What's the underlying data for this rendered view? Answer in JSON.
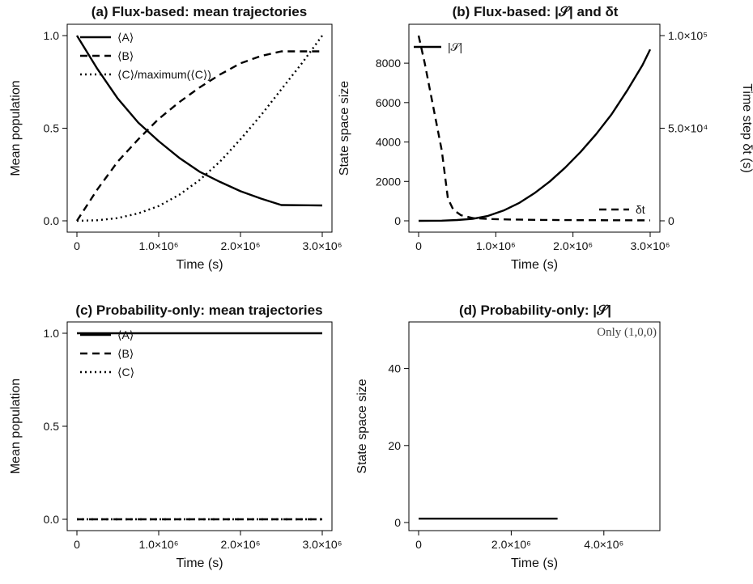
{
  "chart_data": [
    {
      "id": "a",
      "type": "line",
      "title": "(a) Flux-based: mean trajectories",
      "xlabel": "Time (s)",
      "ylabel": "Mean population",
      "xlim": [
        0,
        3000000
      ],
      "ylim": [
        0,
        1
      ],
      "xticks": [
        0,
        1000000,
        2000000,
        3000000
      ],
      "xtick_labels": [
        "0",
        "1.0×10⁶",
        "2.0×10⁶",
        "3.0×10⁶"
      ],
      "yticks": [
        0,
        0.5,
        1
      ],
      "ytick_labels": [
        "0.0",
        "0.5",
        "1.0"
      ],
      "legend_position": "top-left",
      "series": [
        {
          "name": "⟨A⟩",
          "style": "solid",
          "x": [
            0,
            250000,
            500000,
            750000,
            1000000,
            1250000,
            1500000,
            1750000,
            2000000,
            2250000,
            2500000,
            3000000
          ],
          "values": [
            1.0,
            0.82,
            0.66,
            0.53,
            0.43,
            0.34,
            0.265,
            0.21,
            0.16,
            0.12,
            0.085,
            0.083
          ]
        },
        {
          "name": "⟨B⟩",
          "style": "dashed",
          "x": [
            0,
            250000,
            500000,
            750000,
            1000000,
            1250000,
            1500000,
            1750000,
            2000000,
            2250000,
            2500000,
            2750000,
            3000000
          ],
          "values": [
            0.0,
            0.17,
            0.32,
            0.44,
            0.55,
            0.64,
            0.72,
            0.79,
            0.85,
            0.89,
            0.915,
            0.915,
            0.915
          ]
        },
        {
          "name": "⟨C⟩/maximum(⟨C⟩)",
          "style": "dotted",
          "x": [
            0,
            250000,
            500000,
            750000,
            1000000,
            1250000,
            1500000,
            1750000,
            2000000,
            2250000,
            2500000,
            2750000,
            3000000
          ],
          "values": [
            0.0,
            0.003,
            0.015,
            0.04,
            0.08,
            0.14,
            0.22,
            0.32,
            0.44,
            0.57,
            0.71,
            0.85,
            1.0
          ]
        }
      ]
    },
    {
      "id": "b",
      "type": "line",
      "title": "(b) Flux-based: |𝒮| and δt",
      "xlabel": "Time (s)",
      "ylabel": "State space size",
      "ylabel_right": "Time step δt (s)",
      "xlim": [
        0,
        3000000
      ],
      "ylim": [
        0,
        9400
      ],
      "ylim_right": [
        0,
        100000
      ],
      "xticks": [
        0,
        1000000,
        2000000,
        3000000
      ],
      "xtick_labels": [
        "0",
        "1.0×10⁶",
        "2.0×10⁶",
        "3.0×10⁶"
      ],
      "yticks": [
        0,
        2000,
        4000,
        6000,
        8000
      ],
      "ytick_labels": [
        "0",
        "2000",
        "4000",
        "6000",
        "8000"
      ],
      "yticks_right": [
        0,
        50000,
        100000
      ],
      "ytick_labels_right": [
        "0",
        "5.0×10⁴",
        "1.0×10⁵"
      ],
      "series": [
        {
          "name": "|𝒮|",
          "style": "solid",
          "axis": "left",
          "legend_position": "top-left",
          "x": [
            0,
            300000,
            500000,
            700000,
            900000,
            1100000,
            1300000,
            1500000,
            1700000,
            1900000,
            2100000,
            2300000,
            2500000,
            2700000,
            2900000,
            3000000
          ],
          "values": [
            0,
            10,
            40,
            100,
            250,
            520,
            900,
            1400,
            2000,
            2700,
            3500,
            4400,
            5400,
            6600,
            7900,
            8700
          ]
        },
        {
          "name": "δt",
          "style": "dashed",
          "axis": "right",
          "legend_position": "bottom-right",
          "x": [
            0,
            80000,
            150000,
            220000,
            300000,
            380000,
            450000,
            550000,
            700000,
            900000,
            1200000,
            1600000,
            2000000,
            2500000,
            3000000
          ],
          "values": [
            100000,
            85000,
            70000,
            55000,
            38000,
            12000,
            6000,
            3000,
            1500,
            1000,
            700,
            500,
            400,
            300,
            250
          ]
        }
      ]
    },
    {
      "id": "c",
      "type": "line",
      "title": "(c) Probability-only: mean trajectories",
      "xlabel": "Time (s)",
      "ylabel": "Mean population",
      "xlim": [
        0,
        3000000
      ],
      "ylim": [
        0,
        1
      ],
      "xticks": [
        0,
        1000000,
        2000000,
        3000000
      ],
      "xtick_labels": [
        "0",
        "1.0×10⁶",
        "2.0×10⁶",
        "3.0×10⁶"
      ],
      "yticks": [
        0,
        0.5,
        1
      ],
      "ytick_labels": [
        "0.0",
        "0.5",
        "1.0"
      ],
      "legend_position": "top-left",
      "series": [
        {
          "name": "⟨A⟩",
          "style": "solid",
          "x": [
            0,
            3000000
          ],
          "values": [
            1.0,
            1.0
          ]
        },
        {
          "name": "⟨B⟩",
          "style": "dashed",
          "x": [
            0,
            3000000
          ],
          "values": [
            0.0,
            0.0
          ]
        },
        {
          "name": "⟨C⟩",
          "style": "dotted",
          "x": [
            0,
            3000000
          ],
          "values": [
            0.0,
            0.0
          ]
        }
      ]
    },
    {
      "id": "d",
      "type": "line",
      "title": "(d) Probability-only: |𝒮|",
      "xlabel": "Time (s)",
      "ylabel": "State space size",
      "xlim": [
        0,
        5000000
      ],
      "ylim": [
        0,
        50
      ],
      "xticks": [
        0,
        2000000,
        4000000
      ],
      "xtick_labels": [
        "0",
        "2.0×10⁶",
        "4.0×10⁶"
      ],
      "yticks": [
        0,
        20,
        40
      ],
      "ytick_labels": [
        "0",
        "20",
        "40"
      ],
      "annotation": "Only (1,0,0)",
      "series": [
        {
          "style": "solid",
          "x": [
            0,
            3000000
          ],
          "values": [
            1,
            1
          ]
        }
      ]
    }
  ]
}
